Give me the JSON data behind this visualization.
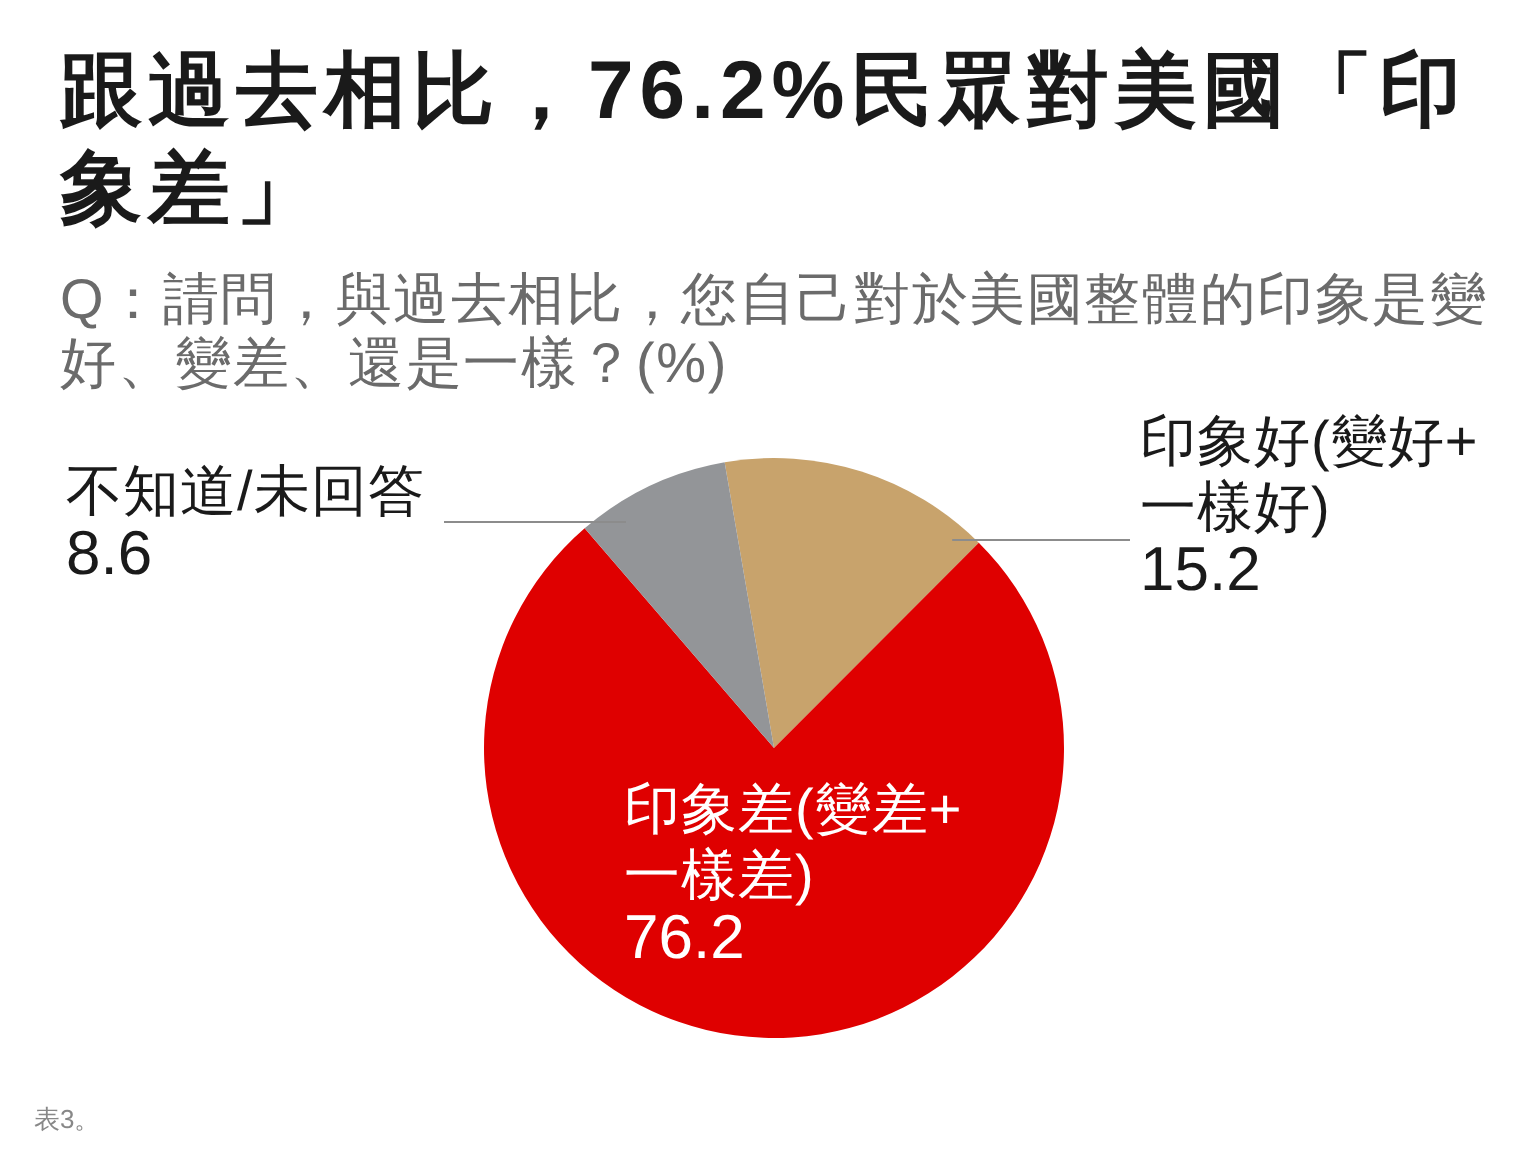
{
  "chart_data": {
    "type": "pie",
    "title": "跟過去相比，76.2%民眾對美國「印象差」",
    "subtitle": "Q：請問，與過去相比，您自己對於美國整體的印象是變好、變差、還是一樣？(%)",
    "categories": [
      "印象好(變好+一樣好)",
      "印象差(變差+一樣差)",
      "不知道/未回答"
    ],
    "values": [
      15.2,
      76.2,
      8.6
    ],
    "colors": [
      "#c8a36c",
      "#df0000",
      "#939598"
    ],
    "data_labels": true,
    "annotations": [
      "表3。"
    ]
  }
}
